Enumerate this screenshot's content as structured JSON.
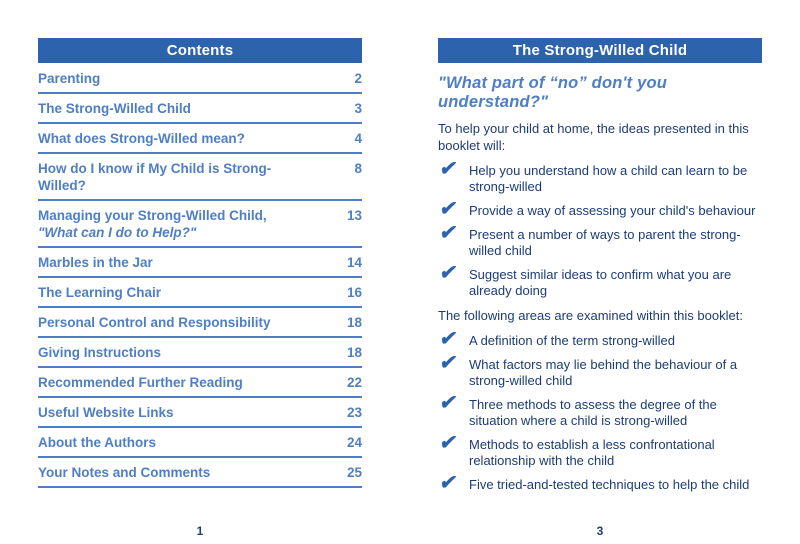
{
  "colors": {
    "band": "#2d62ad",
    "toc": "#4e7fc4",
    "body": "#1d3c75"
  },
  "icons": {
    "check": "✔"
  },
  "left_page": {
    "header": "Contents",
    "entries": [
      {
        "label": "Parenting",
        "page": "2"
      },
      {
        "label": "The Strong-Willed Child",
        "page": "3"
      },
      {
        "label": "What does Strong-Willed mean?",
        "page": "4"
      },
      {
        "label": "How do I know if My Child is Strong-Willed?",
        "page": "8"
      },
      {
        "label": "Managing your Strong-Willed Child,",
        "sublabel": "\"What can I do to Help?\"",
        "page": "13"
      },
      {
        "label": "Marbles in the Jar",
        "page": "14"
      },
      {
        "label": "The Learning Chair",
        "page": "16"
      },
      {
        "label": "Personal Control and Responsibility",
        "page": "18"
      },
      {
        "label": "Giving Instructions",
        "page": "18"
      },
      {
        "label": "Recommended Further Reading",
        "page": "22"
      },
      {
        "label": "Useful Website Links",
        "page": "23"
      },
      {
        "label": "About the Authors",
        "page": "24"
      },
      {
        "label": "Your Notes and Comments",
        "page": "25"
      }
    ],
    "page_number": "1"
  },
  "right_page": {
    "header": "The Strong-Willed Child",
    "quote": "\"What part of “no” don't you understand?\"",
    "intro1": "To help your child at home, the ideas presented in this booklet will:",
    "list1": [
      "Help you understand how a child can learn to be strong-willed",
      "Provide a way of assessing your child's behaviour",
      "Present a number of ways to parent the strong-willed child",
      "Suggest similar ideas to confirm what you are already doing"
    ],
    "intro2": "The following areas are examined within this booklet:",
    "list2": [
      "A definition of the term strong-willed",
      "What factors may lie behind the behaviour of a strong-willed child",
      "Three methods to assess the degree of the situation where a child is strong-willed",
      "Methods to establish a less confrontational relationship with the child",
      "Five tried-and-tested techniques to help the child"
    ],
    "page_number": "3"
  }
}
